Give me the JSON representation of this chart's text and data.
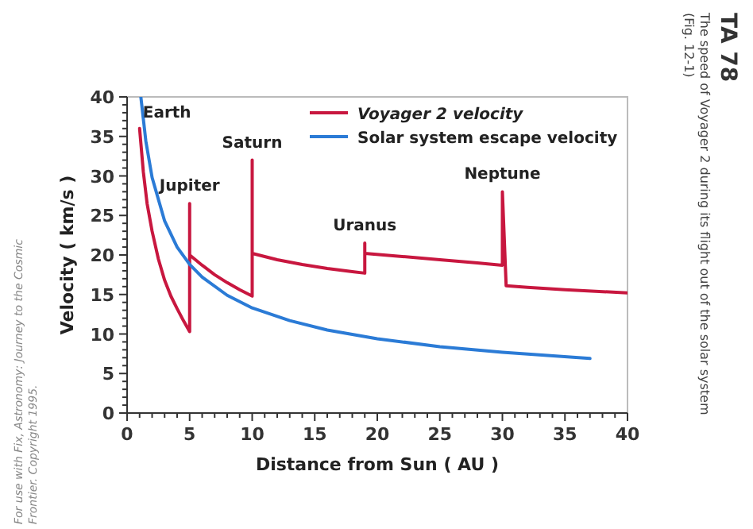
{
  "chart_data": {
    "type": "line",
    "title": "TA 78",
    "subtitle": "The speed of Voyager 2 during its flight out of the solar system (Fig. 12-1)",
    "xlabel": "Distance from Sun ( AU )",
    "ylabel": "Velocity ( km/s )",
    "annotations": [
      {
        "text": "Earth",
        "x": 1,
        "y": 36
      },
      {
        "text": "Jupiter",
        "x": 5,
        "y": 26.5
      },
      {
        "text": "Saturn",
        "x": 10,
        "y": 32
      },
      {
        "text": "Uranus",
        "x": 19,
        "y": 21.5
      },
      {
        "text": "Neptune",
        "x": 30,
        "y": 28
      },
      "For use with Fix, Astronomy: Journey to the Cosmic Frontier. Copyright 1995."
    ],
    "series": [
      {
        "name": "Voyager 2 velocity",
        "color": "#c8173f",
        "x": [
          1,
          1.3,
          1.6,
          2,
          2.5,
          3,
          3.5,
          4,
          4.5,
          5,
          5,
          5,
          6,
          7,
          8,
          9,
          10,
          10,
          10,
          12,
          14,
          16,
          18,
          19,
          19,
          19,
          22,
          25,
          28,
          30,
          30,
          30.3,
          32,
          35,
          40
        ],
        "values": [
          36,
          30.5,
          26.5,
          23,
          19.5,
          16.8,
          14.8,
          13.2,
          11.7,
          10.3,
          26.5,
          20,
          18.7,
          17.5,
          16.5,
          15.6,
          14.8,
          32,
          20.2,
          19.4,
          18.8,
          18.3,
          17.9,
          17.7,
          21.5,
          20.2,
          19.8,
          19.4,
          19,
          18.7,
          28,
          16.1,
          15.9,
          15.6,
          15.2
        ]
      },
      {
        "name": "Solar system escape velocity",
        "color": "#2b7bd6",
        "x": [
          1.1,
          1.5,
          2,
          3,
          4,
          5,
          6,
          8,
          10,
          13,
          16,
          20,
          25,
          30,
          37
        ],
        "values": [
          40,
          34.4,
          29.8,
          24.3,
          21,
          18.8,
          17.2,
          14.9,
          13.3,
          11.7,
          10.5,
          9.4,
          8.4,
          7.7,
          6.9
        ]
      }
    ],
    "xlim": [
      0,
      40
    ],
    "ylim": [
      0,
      40
    ],
    "xticks": [
      0,
      {
        "value": 1,
        "label": null
      },
      {
        "value": 2,
        "label": null
      },
      {
        "value": 3,
        "label": null
      },
      {
        "value": 4,
        "label": null
      },
      5,
      {
        "value": 6,
        "label": null
      },
      {
        "value": 7,
        "label": null
      },
      {
        "value": 8,
        "label": null
      },
      {
        "value": 9,
        "label": null
      },
      10,
      {
        "value": 11,
        "label": null
      },
      {
        "value": 12,
        "label": null
      },
      {
        "value": 13,
        "label": null
      },
      {
        "value": 14,
        "label": null
      },
      15,
      {
        "value": 16,
        "label": null
      },
      {
        "value": 17,
        "label": null
      },
      {
        "value": 18,
        "label": null
      },
      {
        "value": 19,
        "label": null
      },
      20,
      {
        "value": 21,
        "label": null
      },
      {
        "value": 22,
        "label": null
      },
      {
        "value": 23,
        "label": null
      },
      {
        "value": 24,
        "label": null
      },
      25,
      {
        "value": 26,
        "label": null
      },
      {
        "value": 27,
        "label": null
      },
      {
        "value": 28,
        "label": null
      },
      {
        "value": 29,
        "label": null
      },
      30,
      {
        "value": 31,
        "label": null
      },
      {
        "value": 32,
        "label": null
      },
      {
        "value": 33,
        "label": null
      },
      {
        "value": 34,
        "label": null
      },
      35,
      {
        "value": 36,
        "label": null
      },
      {
        "value": 37,
        "label": null
      },
      {
        "value": 38,
        "label": null
      },
      {
        "value": 39,
        "label": null
      },
      40
    ],
    "yticks": [
      0,
      {
        "value": 1,
        "label": null
      },
      {
        "value": 2,
        "label": null
      },
      {
        "value": 3,
        "label": null
      },
      {
        "value": 4,
        "label": null
      },
      5,
      {
        "value": 6,
        "label": null
      },
      {
        "value": 7,
        "label": null
      },
      {
        "value": 8,
        "label": null
      },
      {
        "value": 9,
        "label": null
      },
      10,
      {
        "value": 11,
        "label": null
      },
      {
        "value": 12,
        "label": null
      },
      {
        "value": 13,
        "label": null
      },
      {
        "value": 14,
        "label": null
      },
      15,
      {
        "value": 16,
        "label": null
      },
      {
        "value": 17,
        "label": null
      },
      {
        "value": 18,
        "label": null
      },
      {
        "value": 19,
        "label": null
      },
      20,
      {
        "value": 21,
        "label": null
      },
      {
        "value": 22,
        "label": null
      },
      {
        "value": 23,
        "label": null
      },
      {
        "value": 24,
        "label": null
      },
      25,
      {
        "value": 26,
        "label": null
      },
      {
        "value": 27,
        "label": null
      },
      {
        "value": 28,
        "label": null
      },
      {
        "value": 29,
        "label": null
      },
      30,
      {
        "value": 31,
        "label": null
      },
      {
        "value": 32,
        "label": null
      },
      {
        "value": 33,
        "label": null
      },
      {
        "value": 34,
        "label": null
      },
      35,
      {
        "value": 36,
        "label": null
      },
      {
        "value": 37,
        "label": null
      },
      {
        "value": 38,
        "label": null
      },
      {
        "value": 39,
        "label": null
      },
      40
    ],
    "grid": false,
    "legend": "top right",
    "marker": "none",
    "line_style": "solid"
  }
}
